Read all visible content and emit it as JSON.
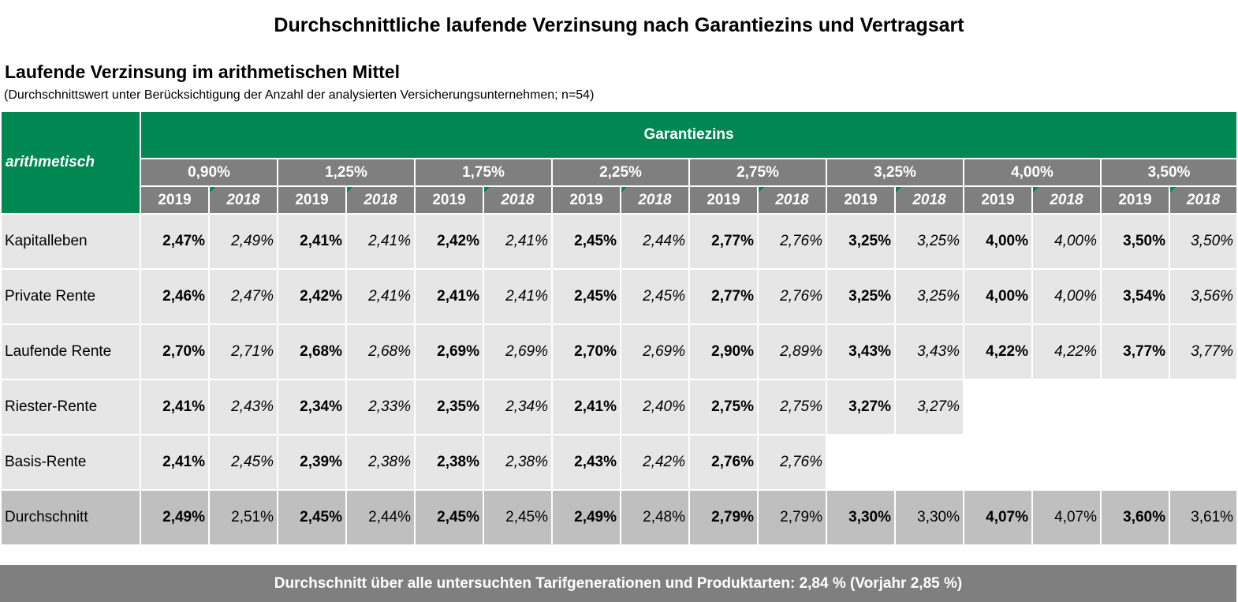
{
  "title": "Durchschnittliche laufende Verzinsung nach Garantiezins und Vertragsart",
  "subtitle": "Laufende Verzinsung im arithmetischen Mittel",
  "note": "(Durchschnittswert unter Berücksichtigung der Anzahl der analysierten Versicherungsunternehmen; n=54)",
  "table": {
    "corner_label": "arithmetisch",
    "group_header": "Garantiezins",
    "rates": [
      "0,90%",
      "1,25%",
      "1,75%",
      "2,25%",
      "2,75%",
      "3,25%",
      "4,00%",
      "3,50%"
    ],
    "year_current": "2019",
    "year_previous": "2018",
    "rows": [
      {
        "label": "Kapitalleben",
        "values": [
          "2,47%",
          "2,49%",
          "2,41%",
          "2,41%",
          "2,42%",
          "2,41%",
          "2,45%",
          "2,44%",
          "2,77%",
          "2,76%",
          "3,25%",
          "3,25%",
          "4,00%",
          "4,00%",
          "3,50%",
          "3,50%"
        ]
      },
      {
        "label": "Private Rente",
        "values": [
          "2,46%",
          "2,47%",
          "2,42%",
          "2,41%",
          "2,41%",
          "2,41%",
          "2,45%",
          "2,45%",
          "2,77%",
          "2,76%",
          "3,25%",
          "3,25%",
          "4,00%",
          "4,00%",
          "3,54%",
          "3,56%"
        ]
      },
      {
        "label": "Laufende Rente",
        "values": [
          "2,70%",
          "2,71%",
          "2,68%",
          "2,68%",
          "2,69%",
          "2,69%",
          "2,70%",
          "2,69%",
          "2,90%",
          "2,89%",
          "3,43%",
          "3,43%",
          "4,22%",
          "4,22%",
          "3,77%",
          "3,77%"
        ]
      },
      {
        "label": "Riester-Rente",
        "values": [
          "2,41%",
          "2,43%",
          "2,34%",
          "2,33%",
          "2,35%",
          "2,34%",
          "2,41%",
          "2,40%",
          "2,75%",
          "2,75%",
          "3,27%",
          "3,27%",
          "",
          "",
          "",
          ""
        ]
      },
      {
        "label": "Basis-Rente",
        "values": [
          "2,41%",
          "2,45%",
          "2,39%",
          "2,38%",
          "2,38%",
          "2,38%",
          "2,43%",
          "2,42%",
          "2,76%",
          "2,76%",
          "",
          "",
          "",
          "",
          "",
          ""
        ]
      },
      {
        "label": "Durchschnitt",
        "values": [
          "2,49%",
          "2,51%",
          "2,45%",
          "2,44%",
          "2,45%",
          "2,45%",
          "2,49%",
          "2,48%",
          "2,79%",
          "2,79%",
          "3,30%",
          "3,30%",
          "4,07%",
          "4,07%",
          "3,60%",
          "3,61%"
        ],
        "is_average": true
      }
    ]
  },
  "footer": "Durchschnitt über alle untersuchten Tarifgenerationen und Produktarten: 2,84 % (Vorjahr 2,85 %)",
  "colors": {
    "green": "#008752",
    "header_gray": "#7f7f7f",
    "cell_light": "#e6e6e6",
    "average_row": "#bfbfbf"
  }
}
